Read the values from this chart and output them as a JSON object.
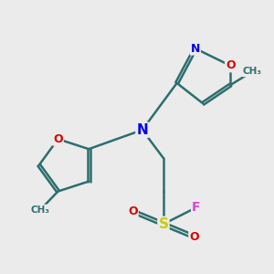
{
  "background_color": "#ebebeb",
  "atom_colors": {
    "C": "#2d6e6e",
    "N": "#0000ee",
    "O": "#dd0000",
    "S": "#cccc00",
    "F": "#dd44dd"
  },
  "bond_color": "#2d6e6e",
  "bond_width": 1.8,
  "figsize": [
    3.0,
    3.0
  ],
  "dpi": 100
}
